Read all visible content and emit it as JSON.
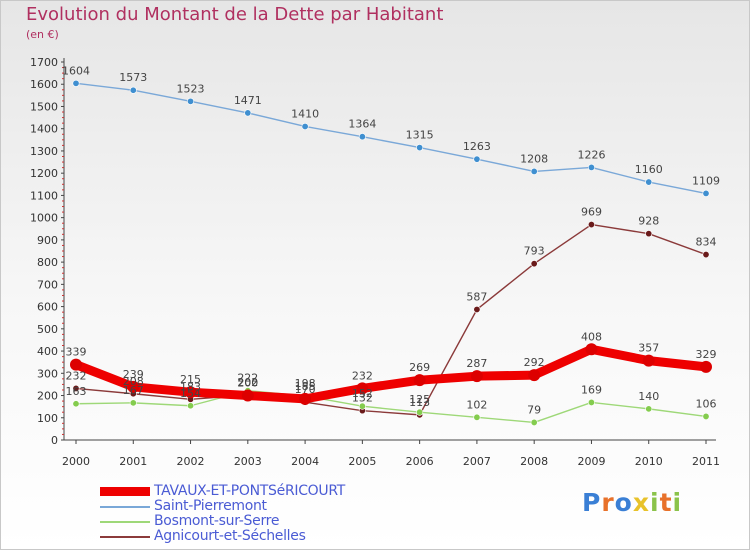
{
  "title": "Evolution du Montant de la Dette par Habitant",
  "subtitle": "(en €)",
  "logo": {
    "text": "Proxiti",
    "colors": [
      "#3a7fd5",
      "#e8712a",
      "#3a7fd5",
      "#e8c22a",
      "#8bc34a",
      "#e8712a",
      "#8bc34a"
    ]
  },
  "chart_data": {
    "type": "line",
    "x": [
      "2000",
      "2001",
      "2002",
      "2003",
      "2004",
      "2005",
      "2006",
      "2007",
      "2008",
      "2009",
      "2010",
      "2011"
    ],
    "ylim": [
      0,
      1700
    ],
    "yticks": [
      0,
      100,
      200,
      300,
      400,
      500,
      600,
      700,
      800,
      900,
      1000,
      1100,
      1200,
      1300,
      1400,
      1500,
      1600,
      1700
    ],
    "grid": false,
    "legend_position": "bottom-left",
    "series": [
      {
        "name": "TAVAUX-ET-PONTSéRICOURT",
        "color": "#ee0000",
        "marker": "#dd0000",
        "width": 9,
        "values": [
          339,
          239,
          215,
          200,
          185,
          232,
          269,
          287,
          292,
          408,
          357,
          329
        ]
      },
      {
        "name": "Saint-Pierremont",
        "color": "#7aa8d8",
        "marker": "#3f8fd0",
        "width": 1.4,
        "values": [
          1604,
          1573,
          1523,
          1471,
          1410,
          1364,
          1315,
          1263,
          1208,
          1226,
          1160,
          1109
        ]
      },
      {
        "name": "Bosmont-sur-Serre",
        "color": "#9ed878",
        "marker": "#84cc4e",
        "width": 1.4,
        "values": [
          163,
          167,
          154,
          222,
          198,
          152,
          125,
          102,
          79,
          169,
          140,
          106
        ]
      },
      {
        "name": "Agnicourt-et-Séchelles",
        "color": "#8b3a3a",
        "marker": "#6a1a1a",
        "width": 1.4,
        "values": [
          232,
          208,
          183,
          202,
          170,
          132,
          113,
          587,
          793,
          969,
          928,
          834
        ]
      }
    ],
    "point_labels": {
      "TAVAUX-ET-PONTSéRICOURT": [
        "339",
        "239",
        "215",
        "200",
        "185",
        "232",
        "269",
        "287",
        "292",
        "408",
        "357",
        "329"
      ],
      "Saint-Pierremont": [
        "1604",
        "1573",
        "1523",
        "1471",
        "1410",
        "1364",
        "1315",
        "1263",
        "1208",
        "1226",
        "1160",
        "1109"
      ],
      "Bosmont-sur-Serre": [
        "163",
        "167",
        "154",
        "222",
        "198",
        "152",
        "125",
        "102",
        "79",
        "169",
        "140",
        "106"
      ],
      "Agnicourt-et-Séchelles": [
        "232",
        "208",
        "183",
        "202",
        "170",
        "132",
        "113",
        "587",
        "793",
        "969",
        "928",
        "834"
      ]
    }
  }
}
